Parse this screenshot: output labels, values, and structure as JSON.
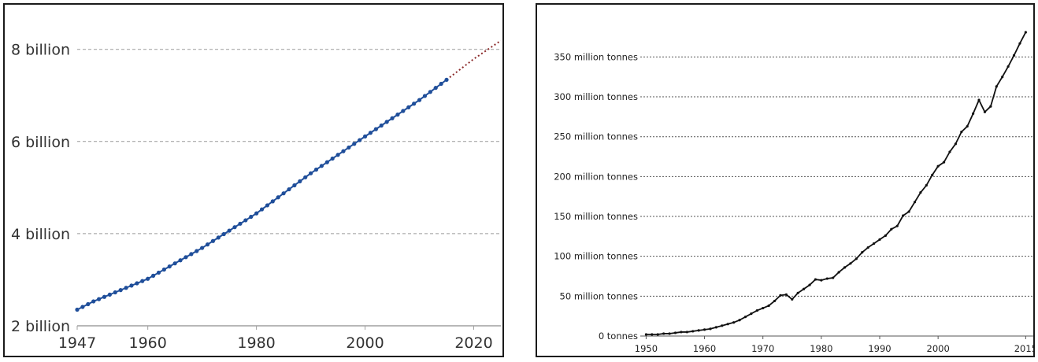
{
  "chart_data": [
    {
      "type": "line",
      "title": "",
      "xlabel": "",
      "ylabel": "",
      "xlim": [
        1947,
        2025
      ],
      "ylim": [
        2000000000,
        8200000000
      ],
      "x_ticks": [
        {
          "value": 1947,
          "label": "1947"
        },
        {
          "value": 1960,
          "label": "1960"
        },
        {
          "value": 1980,
          "label": "1980"
        },
        {
          "value": 2000,
          "label": "2000"
        },
        {
          "value": 2020,
          "label": "2020"
        }
      ],
      "y_ticks": [
        {
          "value": 2000000000,
          "label": "2 billion"
        },
        {
          "value": 4000000000,
          "label": "4 billion"
        },
        {
          "value": 6000000000,
          "label": "6 billion"
        },
        {
          "value": 8000000000,
          "label": "8 billion"
        }
      ],
      "grid": "horizontal dashed",
      "colors": {
        "series": "#1f4e9a",
        "projection": "#8b2a2a",
        "grid": "#9a9a9a",
        "axis": "#a0a0a0"
      },
      "series": [
        {
          "style": "solid line with markers",
          "anchors": [
            {
              "x": 1947,
              "y": 2350000000
            },
            {
              "x": 1950,
              "y": 2530000000
            },
            {
              "x": 1960,
              "y": 3020000000
            },
            {
              "x": 1970,
              "y": 3690000000
            },
            {
              "x": 1980,
              "y": 4440000000
            },
            {
              "x": 1990,
              "y": 5310000000
            },
            {
              "x": 2000,
              "y": 6110000000
            },
            {
              "x": 2010,
              "y": 6900000000
            },
            {
              "x": 2015,
              "y": 7340000000
            }
          ]
        },
        {
          "style": "dotted projection",
          "points": [
            {
              "x": 2015,
              "y": 7340000000
            },
            {
              "x": 2020,
              "y": 7790000000
            },
            {
              "x": 2025,
              "y": 8190000000
            }
          ]
        }
      ]
    },
    {
      "type": "line",
      "title": "",
      "xlabel": "",
      "ylabel": "",
      "xlim": [
        1949,
        2016.3
      ],
      "ylim": [
        0,
        380
      ],
      "x_ticks": [
        {
          "value": 1950,
          "label": "1950"
        },
        {
          "value": 1960,
          "label": "1960"
        },
        {
          "value": 1970,
          "label": "1970"
        },
        {
          "value": 1980,
          "label": "1980"
        },
        {
          "value": 1990,
          "label": "1990"
        },
        {
          "value": 2000,
          "label": "2000"
        },
        {
          "value": 2015,
          "label": "2015"
        }
      ],
      "y_ticks": [
        {
          "value": 0,
          "label": "0 tonnes"
        },
        {
          "value": 50,
          "label": "50 million tonnes"
        },
        {
          "value": 100,
          "label": "100 million tonnes"
        },
        {
          "value": 150,
          "label": "150 million tonnes"
        },
        {
          "value": 200,
          "label": "200 million tonnes"
        },
        {
          "value": 250,
          "label": "250 million tonnes"
        },
        {
          "value": 300,
          "label": "300 million tonnes"
        },
        {
          "value": 350,
          "label": "350 million tonnes"
        }
      ],
      "grid": "horizontal dotted",
      "colors": {
        "series": "#111111",
        "grid": "#555555",
        "axis": "#555555"
      },
      "series": [
        {
          "style": "line with small markers",
          "points": [
            {
              "x": 1950,
              "y": 2
            },
            {
              "x": 1951,
              "y": 2
            },
            {
              "x": 1952,
              "y": 2
            },
            {
              "x": 1953,
              "y": 3
            },
            {
              "x": 1954,
              "y": 3
            },
            {
              "x": 1955,
              "y": 4
            },
            {
              "x": 1956,
              "y": 5
            },
            {
              "x": 1957,
              "y": 5
            },
            {
              "x": 1958,
              "y": 6
            },
            {
              "x": 1959,
              "y": 7
            },
            {
              "x": 1960,
              "y": 8
            },
            {
              "x": 1961,
              "y": 9
            },
            {
              "x": 1962,
              "y": 11
            },
            {
              "x": 1963,
              "y": 13
            },
            {
              "x": 1964,
              "y": 15
            },
            {
              "x": 1965,
              "y": 17
            },
            {
              "x": 1966,
              "y": 20
            },
            {
              "x": 1967,
              "y": 24
            },
            {
              "x": 1968,
              "y": 28
            },
            {
              "x": 1969,
              "y": 32
            },
            {
              "x": 1970,
              "y": 35
            },
            {
              "x": 1971,
              "y": 38
            },
            {
              "x": 1972,
              "y": 44
            },
            {
              "x": 1973,
              "y": 51
            },
            {
              "x": 1974,
              "y": 52
            },
            {
              "x": 1975,
              "y": 46
            },
            {
              "x": 1976,
              "y": 54
            },
            {
              "x": 1977,
              "y": 59
            },
            {
              "x": 1978,
              "y": 64
            },
            {
              "x": 1979,
              "y": 71
            },
            {
              "x": 1980,
              "y": 70
            },
            {
              "x": 1981,
              "y": 72
            },
            {
              "x": 1982,
              "y": 73
            },
            {
              "x": 1983,
              "y": 80
            },
            {
              "x": 1984,
              "y": 86
            },
            {
              "x": 1985,
              "y": 91
            },
            {
              "x": 1986,
              "y": 97
            },
            {
              "x": 1987,
              "y": 105
            },
            {
              "x": 1988,
              "y": 111
            },
            {
              "x": 1989,
              "y": 116
            },
            {
              "x": 1990,
              "y": 121
            },
            {
              "x": 1991,
              "y": 126
            },
            {
              "x": 1992,
              "y": 134
            },
            {
              "x": 1993,
              "y": 138
            },
            {
              "x": 1994,
              "y": 151
            },
            {
              "x": 1995,
              "y": 156
            },
            {
              "x": 1996,
              "y": 168
            },
            {
              "x": 1997,
              "y": 180
            },
            {
              "x": 1998,
              "y": 189
            },
            {
              "x": 1999,
              "y": 202
            },
            {
              "x": 2000,
              "y": 213
            },
            {
              "x": 2001,
              "y": 218
            },
            {
              "x": 2002,
              "y": 231
            },
            {
              "x": 2003,
              "y": 241
            },
            {
              "x": 2004,
              "y": 256
            },
            {
              "x": 2005,
              "y": 263
            },
            {
              "x": 2006,
              "y": 279
            },
            {
              "x": 2007,
              "y": 296
            },
            {
              "x": 2008,
              "y": 281
            },
            {
              "x": 2009,
              "y": 288
            },
            {
              "x": 2010,
              "y": 313
            },
            {
              "x": 2011,
              "y": 325
            },
            {
              "x": 2012,
              "y": 338
            },
            {
              "x": 2013,
              "y": 352
            },
            {
              "x": 2014,
              "y": 367
            },
            {
              "x": 2015,
              "y": 381
            }
          ]
        }
      ]
    }
  ]
}
